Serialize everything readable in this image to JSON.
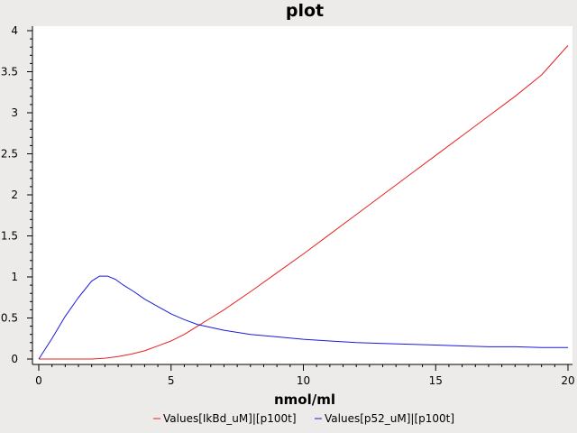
{
  "chart_data": {
    "type": "line",
    "title": "plot",
    "xlabel": "nmol/ml",
    "ylabel": "",
    "xlim": [
      0,
      20
    ],
    "ylim": [
      0,
      4
    ],
    "x_ticks": [
      "0",
      "5",
      "10",
      "15",
      "20"
    ],
    "y_ticks": [
      "0",
      "0.5",
      "1",
      "1.5",
      "2",
      "2.5",
      "3",
      "3.5",
      "4"
    ],
    "grid": false,
    "legend_position": "bottom",
    "series": [
      {
        "name": "Values[IkBd_uM]|[p100t]",
        "color": "#e8201e",
        "x": [
          0,
          1,
          2,
          2.5,
          3,
          3.5,
          4,
          4.5,
          5,
          5.5,
          6,
          6.5,
          7,
          8,
          9,
          10,
          11,
          12,
          13,
          14,
          15,
          16,
          17,
          18,
          19,
          20
        ],
        "y": [
          0,
          0,
          0,
          0.01,
          0.03,
          0.06,
          0.1,
          0.16,
          0.22,
          0.3,
          0.4,
          0.5,
          0.6,
          0.82,
          1.05,
          1.28,
          1.52,
          1.76,
          2.0,
          2.24,
          2.48,
          2.72,
          2.96,
          3.2,
          3.46,
          3.82
        ]
      },
      {
        "name": "Values[p52_uM]|[p100t]",
        "color": "#1a1adc",
        "x": [
          0,
          0.5,
          1,
          1.5,
          2,
          2.3,
          2.6,
          2.9,
          3.2,
          3.6,
          4,
          4.5,
          5,
          5.5,
          6,
          7,
          8,
          9,
          10,
          11,
          12,
          13,
          14,
          15,
          16,
          17,
          18,
          19,
          20
        ],
        "y": [
          0,
          0.25,
          0.52,
          0.75,
          0.95,
          1.01,
          1.01,
          0.97,
          0.9,
          0.82,
          0.73,
          0.64,
          0.55,
          0.48,
          0.42,
          0.35,
          0.3,
          0.27,
          0.24,
          0.22,
          0.2,
          0.19,
          0.18,
          0.17,
          0.16,
          0.15,
          0.15,
          0.14,
          0.14
        ]
      }
    ]
  }
}
